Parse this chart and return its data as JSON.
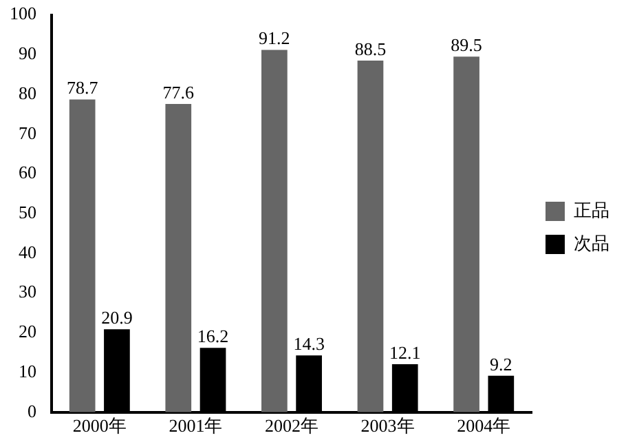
{
  "chart_data": {
    "type": "bar",
    "categories": [
      "2000年",
      "2001年",
      "2002年",
      "2003年",
      "2004年"
    ],
    "series": [
      {
        "name": "正品",
        "color": "#666666",
        "values": [
          78.7,
          77.6,
          91.2,
          88.5,
          89.5
        ]
      },
      {
        "name": "次品",
        "color": "#000000",
        "values": [
          20.9,
          16.2,
          14.3,
          12.1,
          9.2
        ]
      }
    ],
    "ylim": [
      0,
      100
    ],
    "yticks": [
      0,
      10,
      20,
      30,
      40,
      50,
      60,
      70,
      80,
      90,
      100
    ],
    "grid": false,
    "legend": "right",
    "data_labels": true
  }
}
